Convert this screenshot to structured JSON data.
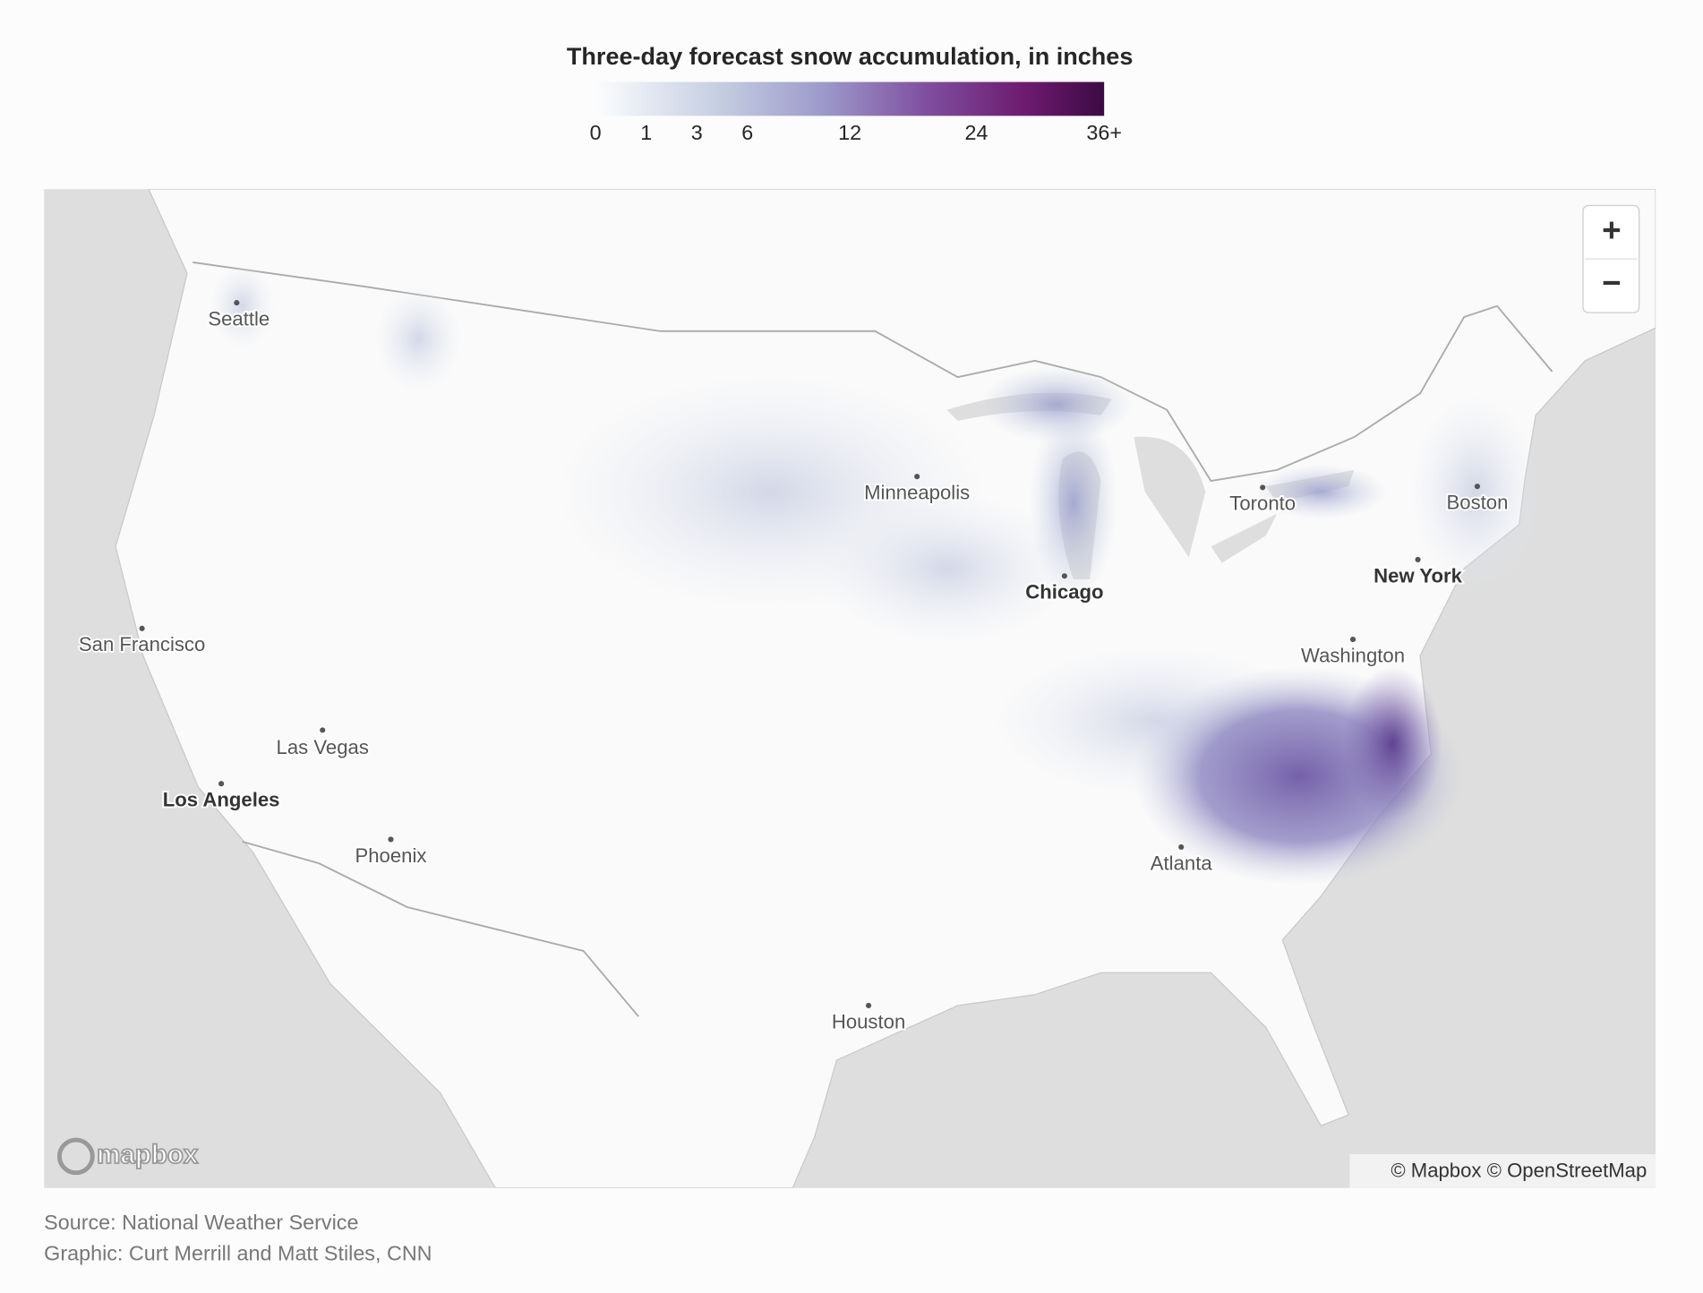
{
  "legend": {
    "title": "Three-day forecast snow accumulation, in inches",
    "ticks": [
      "0",
      "1",
      "3",
      "6",
      "12",
      "24",
      "36+"
    ]
  },
  "map": {
    "cities": [
      "Seattle",
      "San Francisco",
      "Las Vegas",
      "Los Angeles",
      "Phoenix",
      "Minneapolis",
      "Chicago",
      "Toronto",
      "Boston",
      "New York",
      "Washington",
      "Atlanta",
      "Houston"
    ],
    "zoom_in": "+",
    "zoom_out": "−",
    "logo": "mapbox",
    "attribution": "© Mapbox © OpenStreetMap"
  },
  "footer": {
    "source": "Source: National Weather Service",
    "credit": "Graphic: Curt Merrill and Matt Stiles, CNN"
  }
}
